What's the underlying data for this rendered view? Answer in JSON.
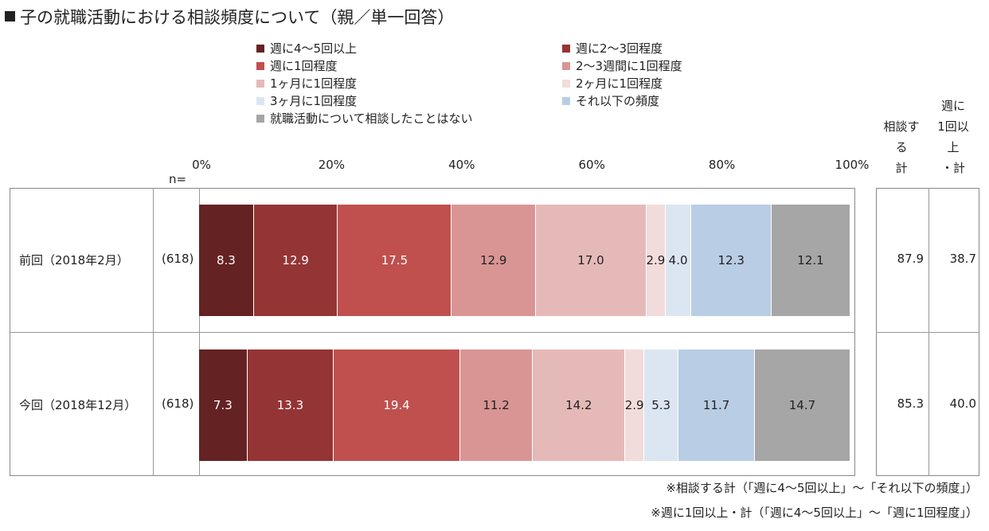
{
  "title": "子の就職活動における相談頻度について（親／単一回答）",
  "n_label": "n=",
  "header_total1": [
    "相談す",
    "る",
    "計"
  ],
  "header_total2": [
    "週に",
    "1回以",
    "上",
    "・計"
  ],
  "notes": [
    "※相談する計（「週に4～5回以上」～「それ以下の頻度」）",
    "※週に1回以上・計（「週に4～5回以上」～「週に1回程度」）"
  ],
  "chart_data": {
    "type": "bar",
    "orientation": "horizontal-stacked-100",
    "title": "子の就職活動における相談頻度について（親／単一回答）",
    "xlim": [
      0,
      100
    ],
    "x_ticks": [
      "0%",
      "20%",
      "40%",
      "60%",
      "80%",
      "100%"
    ],
    "legend_position": "top",
    "series": [
      {
        "name": "週に4～5回以上",
        "color": "#652222",
        "text": "#ffffff"
      },
      {
        "name": "週に2～3回程度",
        "color": "#953434",
        "text": "#ffffff"
      },
      {
        "name": "週に1回程度",
        "color": "#c0504e",
        "text": "#ffffff"
      },
      {
        "name": "2～3週間に1回程度",
        "color": "#d99594",
        "text": "#222222"
      },
      {
        "name": "1ヶ月に1回程度",
        "color": "#e5b9b8",
        "text": "#222222"
      },
      {
        "name": "2ヶ月に1回程度",
        "color": "#f2dcdb",
        "text": "#222222"
      },
      {
        "name": "3ヶ月に1回程度",
        "color": "#dce6f2",
        "text": "#222222"
      },
      {
        "name": "それ以下の頻度",
        "color": "#b9cde5",
        "text": "#222222"
      },
      {
        "name": "就職活動について相談したことはない",
        "color": "#a6a6a6",
        "text": "#222222"
      }
    ],
    "rows": [
      {
        "label": "前回（2018年2月）",
        "n": "(618)",
        "values": [
          8.3,
          12.9,
          17.5,
          12.9,
          17.0,
          2.9,
          4.0,
          12.3,
          12.1
        ],
        "labels": [
          "8.3",
          "12.9",
          "17.5",
          "12.9",
          "17.0",
          "2.9",
          "4.0",
          "12.3",
          "12.1"
        ],
        "total1": "87.9",
        "total2": "38.7"
      },
      {
        "label": "今回（2018年12月）",
        "n": "(618)",
        "values": [
          7.3,
          13.3,
          19.4,
          11.2,
          14.2,
          2.9,
          5.3,
          11.7,
          14.7
        ],
        "labels": [
          "7.3",
          "13.3",
          "19.4",
          "11.2",
          "14.2",
          "2.9",
          "5.3",
          "11.7",
          "14.7"
        ],
        "total1": "85.3",
        "total2": "40.0"
      }
    ]
  }
}
